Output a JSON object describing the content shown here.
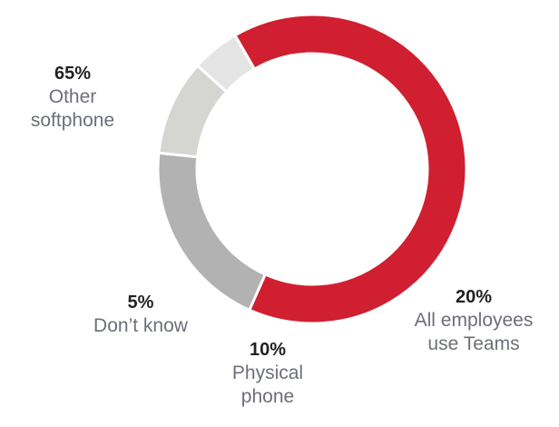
{
  "chart_data": {
    "type": "pie",
    "style": "donut",
    "categories": [
      "All employees use Teams",
      "Physical phone",
      "Don’t know",
      "Other softphone"
    ],
    "values": [
      20,
      10,
      5,
      65
    ],
    "colors": [
      "#b2b2b2",
      "#d5d5d2",
      "#e4e4e4",
      "#d01f30"
    ],
    "labels": [
      {
        "pct": "20%",
        "text": "All employees\nuse Teams"
      },
      {
        "pct": "10%",
        "text": "Physical\nphone"
      },
      {
        "pct": "5%",
        "text": "Don’t know"
      },
      {
        "pct": "65%",
        "text": "Other\nsoftphone"
      }
    ]
  }
}
